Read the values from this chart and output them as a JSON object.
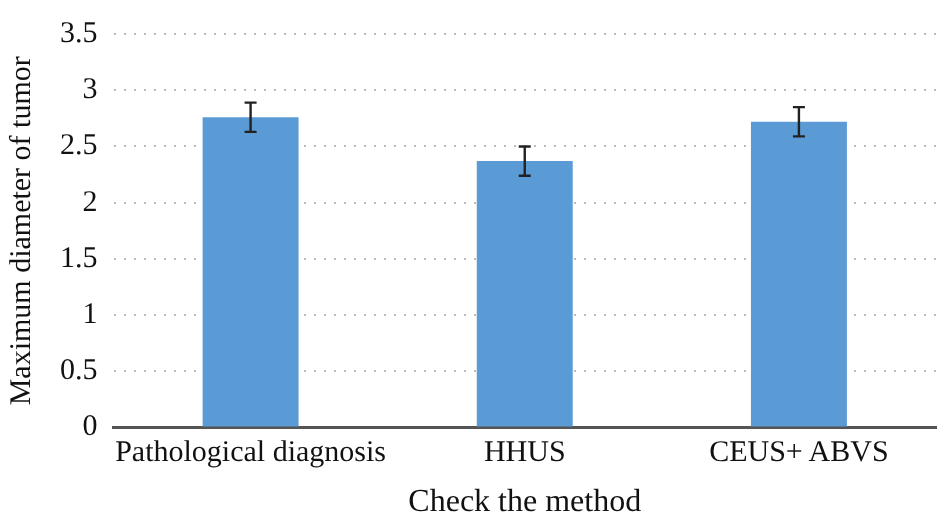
{
  "chart_data": {
    "type": "bar",
    "xlabel": "Check the method",
    "ylabel": "Maximum diameter of tumor",
    "categories": [
      "Pathological diagnosis",
      "HHUS",
      "CEUS+ ABVS"
    ],
    "values": [
      2.76,
      2.37,
      2.72
    ],
    "errors": [
      0.13,
      0.13,
      0.13
    ],
    "color": "#5b9bd5",
    "ylim": [
      0,
      3.5
    ],
    "yticks": [
      0,
      0.5,
      1,
      1.5,
      2,
      2.5,
      3,
      3.5
    ],
    "grid": "y",
    "legend": false
  }
}
